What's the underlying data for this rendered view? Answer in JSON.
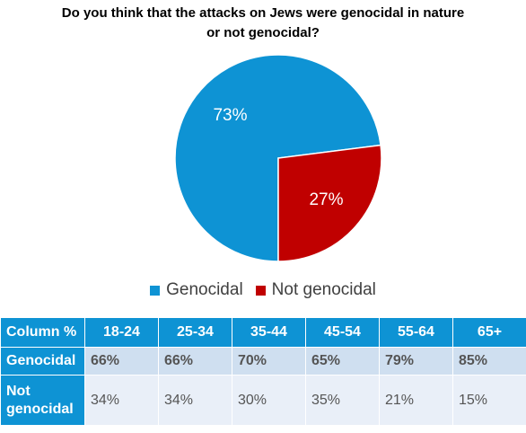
{
  "title": "Do you think that the attacks on Jews were genocidal in nature or not genocidal?",
  "colors": {
    "genocidal": "#0e93d4",
    "not_genocidal": "#c00000",
    "table_header": "#0e93d4"
  },
  "chart_data": {
    "type": "pie",
    "title": "Do you think that the attacks on Jews were genocidal in nature or not genocidal?",
    "slices": [
      {
        "label": "Genocidal",
        "value": 73,
        "display": "73%",
        "color": "#0e93d4"
      },
      {
        "label": "Not genocidal",
        "value": 27,
        "display": "27%",
        "color": "#c00000"
      }
    ],
    "legend_position": "bottom"
  },
  "table": {
    "headers": [
      "Column %",
      "18-24",
      "25-34",
      "35-44",
      "45-54",
      "55-64",
      "65+"
    ],
    "rows": [
      {
        "label": "Genocidal",
        "values": [
          "66%",
          "66%",
          "70%",
          "65%",
          "79%",
          "85%"
        ]
      },
      {
        "label": "Not genocidal",
        "values": [
          "34%",
          "34%",
          "30%",
          "35%",
          "21%",
          "15%"
        ]
      }
    ]
  }
}
